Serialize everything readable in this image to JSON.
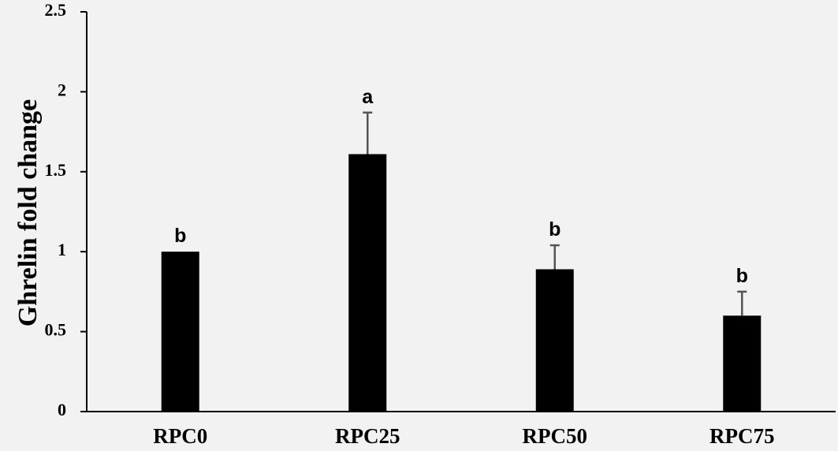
{
  "chart_data": {
    "type": "bar",
    "title": "",
    "xlabel": "",
    "ylabel": "Ghrelin fold change",
    "ylim": [
      0,
      2.5
    ],
    "yticks": [
      0,
      0.5,
      1,
      1.5,
      2,
      2.5
    ],
    "ytick_labels": [
      "0",
      "0.5",
      "1",
      "1.5",
      "2",
      "2.5"
    ],
    "categories": [
      "RPC0",
      "RPC25",
      "RPC50",
      "RPC75"
    ],
    "values": [
      1.0,
      1.61,
      0.89,
      0.6
    ],
    "error_upper": [
      1.0,
      1.87,
      1.04,
      0.75
    ],
    "significance": [
      "b",
      "a",
      "b",
      "b"
    ],
    "bar_color": "#000000",
    "error_color": "#555555",
    "background_color": "#f2f2f2",
    "grid": false,
    "legend": false
  }
}
